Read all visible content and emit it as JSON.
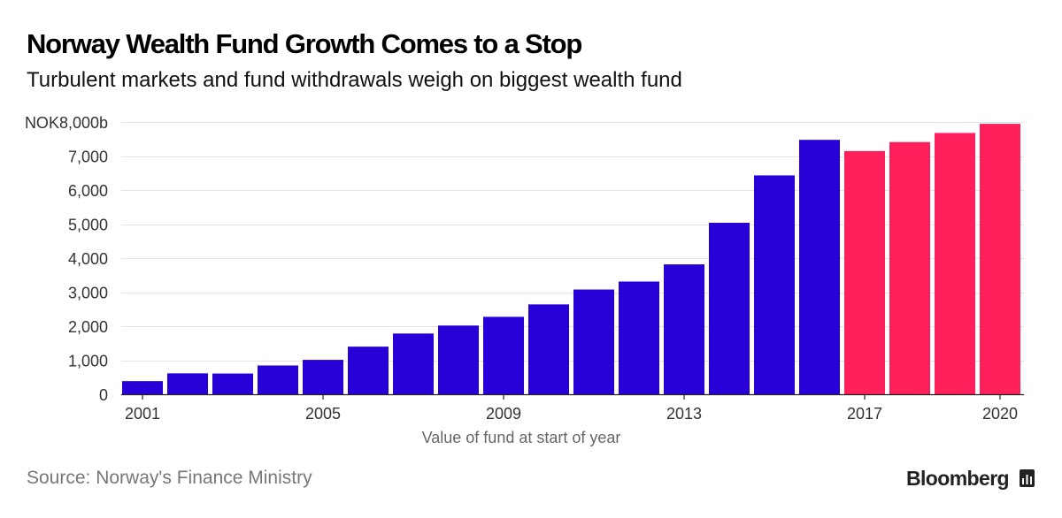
{
  "header": {
    "title": "Norway Wealth Fund Growth Comes to a Stop",
    "subtitle": "Turbulent markets and fund withdrawals weigh on biggest wealth fund"
  },
  "footer": {
    "source": "Source: Norway's Finance Ministry",
    "brand": "Bloomberg",
    "brand_icon": "bloomberg-terminal-icon"
  },
  "chart_data": {
    "type": "bar",
    "title": "Norway Wealth Fund Growth Comes to a Stop",
    "subtitle": "Turbulent markets and fund withdrawals weigh on biggest wealth fund",
    "xlabel": "Value of fund at start of year",
    "ylabel": "",
    "ylim": [
      0,
      8000
    ],
    "yticks": [
      0,
      1000,
      2000,
      3000,
      4000,
      5000,
      6000,
      7000,
      8000
    ],
    "ytick_labels": [
      "0",
      "1,000",
      "2,000",
      "3,000",
      "4,000",
      "5,000",
      "6,000",
      "7,000",
      "NOK8,000b"
    ],
    "xtick_labels": [
      "2001",
      "2005",
      "2009",
      "2013",
      "2017",
      "2020"
    ],
    "categories": [
      "2001",
      "2002",
      "2003",
      "2004",
      "2005",
      "2006",
      "2007",
      "2008",
      "2009",
      "2010",
      "2011",
      "2012",
      "2013",
      "2014",
      "2015",
      "2016",
      "2017",
      "2018",
      "2019",
      "2020"
    ],
    "values": [
      386,
      614,
      609,
      845,
      1011,
      1399,
      1784,
      2019,
      2275,
      2640,
      3077,
      3312,
      3816,
      5038,
      6431,
      7475,
      7146,
      7410,
      7678,
      7946
    ],
    "colors": [
      "#2800d7",
      "#2800d7",
      "#2800d7",
      "#2800d7",
      "#2800d7",
      "#2800d7",
      "#2800d7",
      "#2800d7",
      "#2800d7",
      "#2800d7",
      "#2800d7",
      "#2800d7",
      "#2800d7",
      "#2800d7",
      "#2800d7",
      "#2800d7",
      "#ff1f5b",
      "#ff1f5b",
      "#ff1f5b",
      "#ff1f5b"
    ],
    "grid": true,
    "legend": "none"
  }
}
